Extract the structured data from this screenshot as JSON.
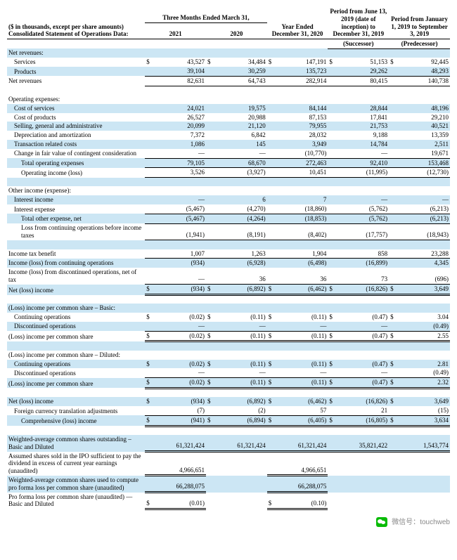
{
  "columns": [
    {
      "top": "",
      "mid": "Three Months Ended March 31,",
      "bot": "2021",
      "succ": ""
    },
    {
      "top": "",
      "mid": "",
      "bot": "2020",
      "succ": ""
    },
    {
      "top": "",
      "mid": "Year Ended December 31, 2020",
      "bot": "",
      "succ": ""
    },
    {
      "top": "Period from June 13, 2019 (date of inception) to December 31, 2019",
      "mid": "",
      "bot": "",
      "succ": "(Successor)"
    },
    {
      "top": "Period from January 1, 2019 to September 3, 2019",
      "mid": "",
      "bot": "",
      "succ": "(Predecessor)"
    }
  ],
  "title_left1": "($ in thousands, except per share amounts)",
  "title_left2": "Consolidated Statement of Operations Data:",
  "rows": [
    {
      "label": "Net revenues:",
      "v": [
        "",
        "",
        "",
        "",
        ""
      ],
      "shade": true
    },
    {
      "label": "Services",
      "indent": 1,
      "v": [
        "43,527",
        "34,484",
        "147,191",
        "51,153",
        "92,445"
      ],
      "cur": true
    },
    {
      "label": "Products",
      "indent": 1,
      "v": [
        "39,104",
        "30,259",
        "135,723",
        "29,262",
        "48,293"
      ],
      "shade": true,
      "bb": true
    },
    {
      "label": "Net revenues",
      "v": [
        "82,631",
        "64,743",
        "282,914",
        "80,415",
        "140,738"
      ],
      "bb": true
    },
    {
      "label": "",
      "v": [
        "",
        "",
        "",
        "",
        ""
      ],
      "spacer": true
    },
    {
      "label": "Operating expenses:",
      "v": [
        "",
        "",
        "",
        "",
        ""
      ]
    },
    {
      "label": "Cost of services",
      "indent": 1,
      "v": [
        "24,021",
        "19,575",
        "84,144",
        "28,844",
        "48,196"
      ],
      "shade": true
    },
    {
      "label": "Cost of products",
      "indent": 1,
      "v": [
        "26,527",
        "20,988",
        "87,153",
        "17,841",
        "29,210"
      ]
    },
    {
      "label": "Selling, general and administrative",
      "indent": 1,
      "v": [
        "20,099",
        "21,120",
        "79,955",
        "21,753",
        "40,521"
      ],
      "shade": true
    },
    {
      "label": "Depreciation and amortization",
      "indent": 1,
      "v": [
        "7,372",
        "6,842",
        "28,032",
        "9,188",
        "13,359"
      ]
    },
    {
      "label": "Transaction related costs",
      "indent": 1,
      "v": [
        "1,086",
        "145",
        "3,949",
        "14,784",
        "2,511"
      ],
      "shade": true
    },
    {
      "label": "Change in fair value of contingent consideration",
      "indent": 1,
      "v": [
        "—",
        "—",
        "(10,770)",
        "—",
        "19,671"
      ],
      "bb": true
    },
    {
      "label": "Total operating expenses",
      "indent": 2,
      "v": [
        "79,105",
        "68,670",
        "272,463",
        "92,410",
        "153,468"
      ],
      "shade": true,
      "bb": true
    },
    {
      "label": "Operating income (loss)",
      "indent": 2,
      "v": [
        "3,526",
        "(3,927)",
        "10,451",
        "(11,995)",
        "(12,730)"
      ],
      "bb": true
    },
    {
      "label": "",
      "v": [
        "",
        "",
        "",
        "",
        ""
      ],
      "spacer": true,
      "shade": true
    },
    {
      "label": "Other income (expense):",
      "v": [
        "",
        "",
        "",
        "",
        ""
      ]
    },
    {
      "label": "Interest income",
      "indent": 1,
      "v": [
        "—",
        "6",
        "7",
        "—",
        "—"
      ],
      "shade": true
    },
    {
      "label": "Interest expense",
      "indent": 1,
      "v": [
        "(5,467)",
        "(4,270)",
        "(18,860)",
        "(5,762)",
        "(6,213)"
      ],
      "bb": true
    },
    {
      "label": "Total other expense, net",
      "indent": 2,
      "v": [
        "(5,467)",
        "(4,264)",
        "(18,853)",
        "(5,762)",
        "(6,213)"
      ],
      "shade": true,
      "bb": true
    },
    {
      "label": "Loss from continuing operations before income taxes",
      "indent": 2,
      "v": [
        "(1,941)",
        "(8,191)",
        "(8,402)",
        "(17,757)",
        "(18,943)"
      ],
      "bb": true
    },
    {
      "label": "",
      "v": [
        "",
        "",
        "",
        "",
        ""
      ],
      "spacer": true,
      "shade": true
    },
    {
      "label": "Income tax benefit",
      "v": [
        "1,007",
        "1,263",
        "1,904",
        "858",
        "23,288"
      ],
      "bb": true
    },
    {
      "label": "Income (loss) from continuing operations",
      "v": [
        "(934)",
        "(6,928)",
        "(6,498)",
        "(16,899)",
        "4,345"
      ],
      "shade": true
    },
    {
      "label": "Income (loss) from discontinued operations, net of tax",
      "v": [
        "—",
        "36",
        "36",
        "73",
        "(696)"
      ],
      "bb": true
    },
    {
      "label": "Net (loss) income",
      "v": [
        "(934)",
        "(6,892)",
        "(6,462)",
        "(16,826)",
        "3,649"
      ],
      "shade": true,
      "cur": true,
      "dbl": true
    },
    {
      "label": "",
      "v": [
        "",
        "",
        "",
        "",
        ""
      ],
      "spacer": true
    },
    {
      "label": "(Loss) income per common share – Basic:",
      "v": [
        "",
        "",
        "",
        "",
        ""
      ],
      "shade": true
    },
    {
      "label": "Continuing operations",
      "indent": 1,
      "v": [
        "(0.02)",
        "(0.11)",
        "(0.11)",
        "(0.47)",
        "3.04"
      ],
      "cur": true
    },
    {
      "label": "Discontinued operations",
      "indent": 1,
      "v": [
        "—",
        "—",
        "—",
        "—",
        "(0.49)"
      ],
      "shade": true,
      "bb": true
    },
    {
      "label": "(Loss) income per common share",
      "v": [
        "(0.02)",
        "(0.11)",
        "(0.11)",
        "(0.47)",
        "2.55"
      ],
      "cur": true,
      "dbl": true
    },
    {
      "label": "",
      "v": [
        "",
        "",
        "",
        "",
        ""
      ],
      "spacer": true,
      "shade": true
    },
    {
      "label": "(Loss) income per common share – Diluted:",
      "v": [
        "",
        "",
        "",
        "",
        ""
      ]
    },
    {
      "label": "Continuing operations",
      "indent": 1,
      "v": [
        "(0.02)",
        "(0.11)",
        "(0.11)",
        "(0.47)",
        "2.81"
      ],
      "shade": true,
      "cur": true
    },
    {
      "label": "Discontinued operations",
      "indent": 1,
      "v": [
        "—",
        "—",
        "—",
        "—",
        "(0.49)"
      ],
      "bb": true
    },
    {
      "label": "(Loss) income per common share",
      "v": [
        "(0.02)",
        "(0.11)",
        "(0.11)",
        "(0.47)",
        "2.32"
      ],
      "shade": true,
      "cur": true,
      "dbl": true
    },
    {
      "label": "",
      "v": [
        "",
        "",
        "",
        "",
        ""
      ],
      "spacer": true
    },
    {
      "label": "Net (loss) income",
      "v": [
        "(934)",
        "(6,892)",
        "(6,462)",
        "(16,826)",
        "3,649"
      ],
      "shade": true,
      "cur": true
    },
    {
      "label": "Foreign currency translation adjustments",
      "indent": 1,
      "v": [
        "(7)",
        "(2)",
        "57",
        "21",
        "(15)"
      ],
      "bb": true
    },
    {
      "label": "Comprehensive (loss) income",
      "indent": 2,
      "v": [
        "(941)",
        "(6,894)",
        "(6,405)",
        "(16,805)",
        "3,634"
      ],
      "shade": true,
      "cur": true,
      "dbl": true
    },
    {
      "label": "",
      "v": [
        "",
        "",
        "",
        "",
        ""
      ],
      "spacer": true
    },
    {
      "label": "Weighted-average common shares outstanding – Basic and Diluted",
      "v": [
        "61,321,424",
        "61,321,424",
        "61,321,424",
        "35,821,422",
        "1,543,774"
      ],
      "shade": true,
      "dbl": true
    },
    {
      "label": "Assumed shares sold in the IPO sufficient to pay the dividend in excess of current year earnings (unaudited)",
      "v": [
        "4,966,651",
        "",
        "4,966,651",
        "",
        ""
      ],
      "dbl": true
    },
    {
      "label": "Weighted-average common shares used to compute pro forma loss per common share (unaudited)",
      "v": [
        "66,288,075",
        "",
        "66,288,075",
        "",
        ""
      ],
      "shade": true,
      "dbl": true
    },
    {
      "label": "Pro forma loss per common share (unaudited) — Basic and Diluted",
      "v": [
        "(0.01)",
        "",
        "(0.10)",
        "",
        ""
      ],
      "cur": true,
      "dbl": true
    }
  ],
  "footer": {
    "prefix": "微信号：",
    "handle": "touchweb"
  }
}
